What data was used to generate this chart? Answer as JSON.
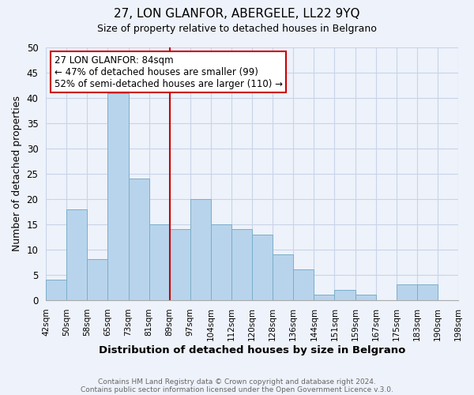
{
  "title": "27, LON GLANFOR, ABERGELE, LL22 9YQ",
  "subtitle": "Size of property relative to detached houses in Belgrano",
  "xlabel": "Distribution of detached houses by size in Belgrano",
  "ylabel": "Number of detached properties",
  "footer_lines": [
    "Contains HM Land Registry data © Crown copyright and database right 2024.",
    "Contains public sector information licensed under the Open Government Licence v.3.0."
  ],
  "bin_labels": [
    "42sqm",
    "50sqm",
    "58sqm",
    "65sqm",
    "73sqm",
    "81sqm",
    "89sqm",
    "97sqm",
    "104sqm",
    "112sqm",
    "120sqm",
    "128sqm",
    "136sqm",
    "144sqm",
    "151sqm",
    "159sqm",
    "167sqm",
    "175sqm",
    "183sqm",
    "190sqm",
    "198sqm"
  ],
  "bar_values": [
    4,
    18,
    8,
    41,
    24,
    15,
    14,
    20,
    15,
    14,
    13,
    9,
    6,
    1,
    2,
    1,
    0,
    3,
    3,
    0
  ],
  "bar_color": "#b8d4ec",
  "bar_edge_color": "#7aaec8",
  "ylim": [
    0,
    50
  ],
  "yticks": [
    0,
    5,
    10,
    15,
    20,
    25,
    30,
    35,
    40,
    45,
    50
  ],
  "vline_position": 6,
  "vline_color": "#cc0000",
  "annotation_text": "27 LON GLANFOR: 84sqm\n← 47% of detached houses are smaller (99)\n52% of semi-detached houses are larger (110) →",
  "annotation_box_color": "#ffffff",
  "annotation_box_edge": "#cc0000",
  "grid_color": "#c8d4e8",
  "background_color": "#eef2fa",
  "title_fontsize": 11,
  "subtitle_fontsize": 9
}
